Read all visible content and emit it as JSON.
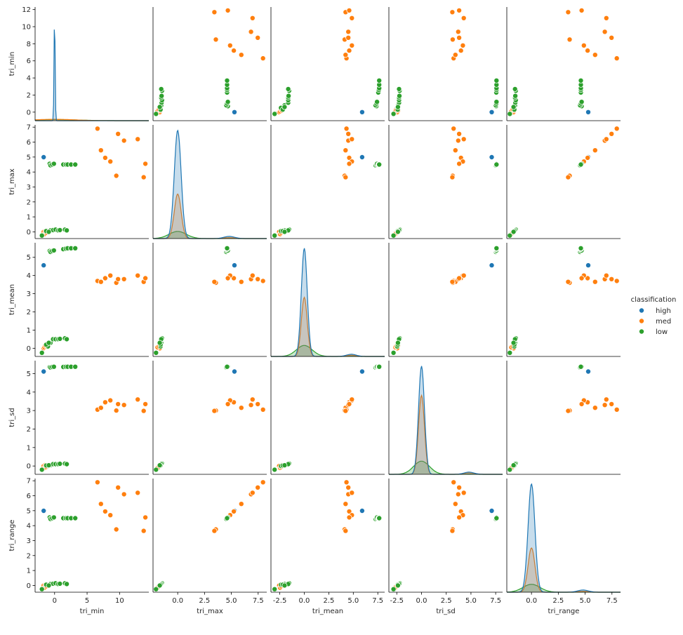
{
  "chart_data": {
    "type": "scatter",
    "subtype": "pairplot",
    "variables": [
      "tri_min",
      "tri_max",
      "tri_mean",
      "tri_sd",
      "tri_range"
    ],
    "diagonal": "kde",
    "grid": false,
    "legend": {
      "title": "classification",
      "placement": "right",
      "entries": [
        {
          "name": "high",
          "color": "#1f77b4"
        },
        {
          "name": "med",
          "color": "#ff7f0e"
        },
        {
          "name": "low",
          "color": "#2ca02c"
        }
      ]
    },
    "axes": {
      "tri_min": {
        "label": "tri_min",
        "range": [
          -1.0,
          12.3
        ],
        "diag_range": [
          -3,
          14.5
        ],
        "ticks": [
          0,
          2,
          4,
          6,
          8,
          10,
          12
        ],
        "xticks": [
          0,
          5,
          10
        ]
      },
      "tri_max": {
        "label": "tri_max",
        "range": [
          -0.45,
          7.15
        ],
        "ticks": [
          0,
          1,
          2,
          3,
          4,
          5,
          6,
          7
        ],
        "xticks": [
          0.0,
          2.5,
          5.0,
          7.5
        ]
      },
      "tri_mean": {
        "label": "tri_mean",
        "range": [
          -0.45,
          5.8
        ],
        "ticks": [
          0,
          1,
          2,
          3,
          4,
          5
        ],
        "xticks": [
          -2.5,
          0.0,
          2.5,
          5.0,
          7.5
        ]
      },
      "tri_sd": {
        "label": "tri_sd",
        "range": [
          -0.45,
          5.7
        ],
        "ticks": [
          0,
          1,
          2,
          3,
          4,
          5
        ],
        "xticks": [
          -2.5,
          0.0,
          2.5,
          5.0,
          7.5
        ]
      },
      "tri_range": {
        "label": "tri_range",
        "range": [
          -0.45,
          7.15
        ],
        "ticks": [
          0,
          1,
          2,
          3,
          4,
          5,
          6,
          7
        ],
        "xticks": [
          0.0,
          2.5,
          5.0,
          7.5
        ]
      }
    },
    "diag_xlim": {
      "tri_min": [
        -3,
        14.5
      ],
      "tri_max": [
        -2.3,
        8.3
      ],
      "tri_mean": [
        -3.4,
        8.2
      ],
      "tri_sd": [
        -3.3,
        8.2
      ],
      "tri_range": [
        -2.3,
        8.3
      ]
    },
    "kde_peaks": {
      "tri_min": {
        "high": 11.8,
        "med": 0.15,
        "low": 0.12,
        "widths": [
          0.08,
          3.0,
          3.5
        ]
      },
      "tri_max": {
        "high": 6.8,
        "med": 2.8,
        "low": 0.45,
        "widths": [
          0.32,
          0.32,
          0.8
        ]
      },
      "tri_mean": {
        "high": 5.4,
        "med": 2.95,
        "low": 0.55,
        "widths": [
          0.3,
          0.3,
          0.8
        ]
      },
      "tri_sd": {
        "high": 5.35,
        "med": 3.9,
        "low": 0.65,
        "widths": [
          0.3,
          0.3,
          0.8
        ]
      },
      "tri_range": {
        "high": 6.85,
        "med": 2.8,
        "low": 0.5,
        "widths": [
          0.32,
          0.32,
          0.8
        ]
      }
    },
    "series": [
      {
        "name": "high",
        "points": [
          {
            "tri_min": 0.0,
            "tri_max": 4.99,
            "tri_mean": 4.56,
            "tri_sd": 5.11,
            "tri_range": 4.99
          },
          {
            "tri_min": 0.0,
            "tri_max": 0.0,
            "tri_mean": 0.0,
            "tri_sd": 0.0,
            "tri_range": 0.0
          },
          {
            "tri_min": 0.0,
            "tri_max": 0.02,
            "tri_mean": 0.01,
            "tri_sd": 0.01,
            "tri_range": 0.02
          }
        ]
      },
      {
        "name": "med",
        "points": [
          {
            "tri_min": 6.3,
            "tri_max": 6.9,
            "tri_mean": 3.7,
            "tri_sd": 3.05,
            "tri_range": 6.9
          },
          {
            "tri_min": 6.7,
            "tri_max": 5.45,
            "tri_mean": 3.65,
            "tri_sd": 3.15,
            "tri_range": 5.45
          },
          {
            "tri_min": 7.2,
            "tri_max": 4.95,
            "tri_mean": 3.85,
            "tri_sd": 3.45,
            "tri_range": 4.95
          },
          {
            "tri_min": 7.8,
            "tri_max": 4.7,
            "tri_mean": 4.0,
            "tri_sd": 3.55,
            "tri_range": 4.7
          },
          {
            "tri_min": 8.5,
            "tri_max": 3.75,
            "tri_mean": 3.6,
            "tri_sd": 3.0,
            "tri_range": 3.75
          },
          {
            "tri_min": 8.7,
            "tri_max": 6.55,
            "tri_mean": 3.8,
            "tri_sd": 3.35,
            "tri_range": 6.55
          },
          {
            "tri_min": 9.4,
            "tri_max": 6.1,
            "tri_mean": 3.8,
            "tri_sd": 3.3,
            "tri_range": 6.1
          },
          {
            "tri_min": 11.0,
            "tri_max": 6.2,
            "tri_mean": 4.0,
            "tri_sd": 3.6,
            "tri_range": 6.2
          },
          {
            "tri_min": 11.7,
            "tri_max": 3.65,
            "tri_mean": 3.65,
            "tri_sd": 2.98,
            "tri_range": 3.65
          },
          {
            "tri_min": 11.9,
            "tri_max": 4.55,
            "tri_mean": 3.85,
            "tri_sd": 3.35,
            "tri_range": 4.55
          },
          {
            "tri_min": 0.0,
            "tri_max": 0.0,
            "tri_mean": 0.0,
            "tri_sd": 0.0,
            "tri_range": 0.0
          },
          {
            "tri_min": 0.1,
            "tri_max": -0.15,
            "tri_mean": 0.05,
            "tri_sd": -0.1,
            "tri_range": -0.15
          },
          {
            "tri_min": 0.3,
            "tri_max": -0.05,
            "tri_mean": 0.1,
            "tri_sd": -0.05,
            "tri_range": -0.05
          },
          {
            "tri_min": 0.2,
            "tri_max": 0.05,
            "tri_mean": 0.15,
            "tri_sd": 0.05,
            "tri_range": 0.05
          }
        ]
      },
      {
        "name": "low",
        "points": [
          {
            "tri_min": 0.7,
            "tri_max": 4.55,
            "tri_mean": 5.35,
            "tri_sd": 5.35,
            "tri_range": 4.55
          },
          {
            "tri_min": 0.8,
            "tri_max": 4.45,
            "tri_mean": 5.3,
            "tri_sd": 5.33,
            "tri_range": 4.45
          },
          {
            "tri_min": 1.0,
            "tri_max": 4.5,
            "tri_mean": 5.35,
            "tri_sd": 5.36,
            "tri_range": 4.5
          },
          {
            "tri_min": 1.2,
            "tri_max": 4.55,
            "tri_mean": 5.38,
            "tri_sd": 5.37,
            "tri_range": 4.55
          },
          {
            "tri_min": 2.3,
            "tri_max": 4.5,
            "tri_mean": 5.45,
            "tri_sd": 5.36,
            "tri_range": 4.5
          },
          {
            "tri_min": 2.6,
            "tri_max": 4.5,
            "tri_mean": 5.48,
            "tri_sd": 5.37,
            "tri_range": 4.5
          },
          {
            "tri_min": 2.8,
            "tri_max": 4.5,
            "tri_mean": 5.5,
            "tri_sd": 5.37,
            "tri_range": 4.5
          },
          {
            "tri_min": 3.2,
            "tri_max": 4.5,
            "tri_mean": 5.5,
            "tri_sd": 5.37,
            "tri_range": 4.5
          },
          {
            "tri_min": 3.7,
            "tri_max": 4.5,
            "tri_mean": 5.5,
            "tri_sd": 5.37,
            "tri_range": 4.5
          },
          {
            "tri_min": -0.2,
            "tri_max": -0.25,
            "tri_mean": -0.25,
            "tri_sd": -0.2,
            "tri_range": -0.25
          },
          {
            "tri_min": 0.5,
            "tri_max": 0.05,
            "tri_mean": 0.1,
            "tri_sd": 0.0,
            "tri_range": 0.05
          },
          {
            "tri_min": 0.8,
            "tri_max": 0.1,
            "tri_mean": 0.3,
            "tri_sd": 0.05,
            "tri_range": 0.1
          },
          {
            "tri_min": 1.1,
            "tri_max": 0.12,
            "tri_mean": 0.5,
            "tri_sd": 0.1,
            "tri_range": 0.12
          },
          {
            "tri_min": 1.4,
            "tri_max": 0.15,
            "tri_mean": 0.5,
            "tri_sd": 0.1,
            "tri_range": 0.15
          },
          {
            "tri_min": 1.7,
            "tri_max": 0.1,
            "tri_mean": 0.5,
            "tri_sd": 0.1,
            "tri_range": 0.1
          },
          {
            "tri_min": 1.9,
            "tri_max": 0.12,
            "tri_mean": 0.52,
            "tri_sd": 0.12,
            "tri_range": 0.12
          },
          {
            "tri_min": 2.5,
            "tri_max": 0.15,
            "tri_mean": 0.55,
            "tri_sd": 0.13,
            "tri_range": 0.15
          },
          {
            "tri_min": 2.7,
            "tri_max": 0.1,
            "tri_mean": 0.5,
            "tri_sd": 0.1,
            "tri_range": 0.1
          },
          {
            "tri_min": 0.3,
            "tri_max": 0.05,
            "tri_mean": 0.2,
            "tri_sd": 0.03,
            "tri_range": 0.05
          },
          {
            "tri_min": 0.6,
            "tri_max": 0.0,
            "tri_mean": 0.3,
            "tri_sd": 0.04,
            "tri_range": 0.0
          }
        ]
      }
    ]
  }
}
